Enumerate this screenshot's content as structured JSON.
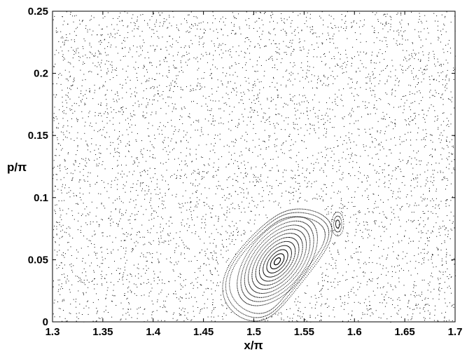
{
  "chart_data": {
    "type": "scatter",
    "title": "",
    "xlabel": "x/π",
    "ylabel": "p/π",
    "xlim": [
      1.3,
      1.7
    ],
    "ylim": [
      0,
      0.25
    ],
    "x_ticks": [
      "1.3",
      "1.35",
      "1.4",
      "1.45",
      "1.5",
      "1.55",
      "1.6",
      "1.65",
      "1.7"
    ],
    "y_ticks": [
      "0",
      "0.05",
      "0.1",
      "0.15",
      "0.2",
      "0.25"
    ],
    "grid": false,
    "legend": "none",
    "marker_color": "#000000",
    "island": {
      "center": [
        1.523,
        0.049
      ],
      "outer_extent_x": [
        1.484,
        1.603
      ],
      "outer_extent_y": [
        0.0,
        0.094
      ],
      "secondary_island_center": [
        1.583,
        0.079
      ]
    },
    "background": "chaotic sea of points uniformly covering x 1.3–1.7, p 0–0.25"
  }
}
